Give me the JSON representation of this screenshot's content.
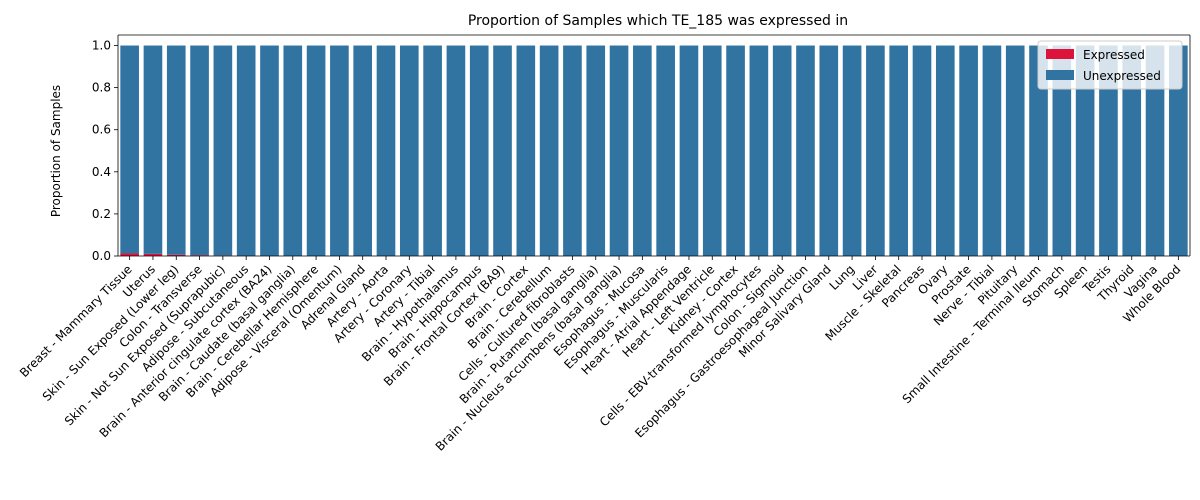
{
  "chart_data": {
    "type": "bar",
    "stacked": true,
    "title": "Proportion of Samples which TE_185 was expressed in",
    "xlabel": "",
    "ylabel": "Proportion of Samples",
    "ylim": [
      0,
      1.05
    ],
    "yticks": [
      "0.0",
      "0.2",
      "0.4",
      "0.6",
      "0.8",
      "1.0"
    ],
    "grid": false,
    "legend_position": "top-right",
    "categories": [
      "Breast - Mammary Tissue",
      "Uterus",
      "Skin - Sun Exposed (Lower leg)",
      "Colon - Transverse",
      "Skin - Not Sun Exposed (Suprapubic)",
      "Adipose - Subcutaneous",
      "Brain - Anterior cingulate cortex (BA24)",
      "Brain - Caudate (basal ganglia)",
      "Brain - Cerebellar Hemisphere",
      "Adipose - Visceral (Omentum)",
      "Adrenal Gland",
      "Artery - Aorta",
      "Artery - Coronary",
      "Artery - Tibial",
      "Brain - Hypothalamus",
      "Brain - Hippocampus",
      "Brain - Frontal Cortex (BA9)",
      "Brain - Cortex",
      "Brain - Cerebellum",
      "Cells - Cultured fibroblasts",
      "Brain - Putamen (basal ganglia)",
      "Brain - Nucleus accumbens (basal ganglia)",
      "Esophagus - Mucosa",
      "Esophagus - Muscularis",
      "Heart - Atrial Appendage",
      "Heart - Left Ventricle",
      "Kidney - Cortex",
      "Cells - EBV-transformed lymphocytes",
      "Colon - Sigmoid",
      "Esophagus - Gastroesophageal Junction",
      "Minor Salivary Gland",
      "Lung",
      "Liver",
      "Muscle - Skeletal",
      "Pancreas",
      "Ovary",
      "Prostate",
      "Nerve - Tibial",
      "Pituitary",
      "Small Intestine - Terminal Ileum",
      "Stomach",
      "Spleen",
      "Testis",
      "Thyroid",
      "Vagina",
      "Whole Blood"
    ],
    "series": [
      {
        "name": "Expressed",
        "color": "#dc143c",
        "values": [
          0.012,
          0.01,
          0.006,
          0.004,
          0.003,
          0,
          0,
          0,
          0,
          0,
          0,
          0,
          0,
          0,
          0,
          0,
          0,
          0,
          0,
          0,
          0,
          0,
          0,
          0,
          0,
          0,
          0,
          0,
          0,
          0,
          0,
          0,
          0,
          0,
          0,
          0,
          0,
          0,
          0,
          0,
          0,
          0,
          0,
          0,
          0,
          0
        ]
      },
      {
        "name": "Unexpressed",
        "color": "#3274a1",
        "values": [
          0.988,
          0.99,
          0.994,
          0.996,
          0.997,
          1,
          1,
          1,
          1,
          1,
          1,
          1,
          1,
          1,
          1,
          1,
          1,
          1,
          1,
          1,
          1,
          1,
          1,
          1,
          1,
          1,
          1,
          1,
          1,
          1,
          1,
          1,
          1,
          1,
          1,
          1,
          1,
          1,
          1,
          1,
          1,
          1,
          1,
          1,
          1,
          1
        ]
      }
    ]
  }
}
